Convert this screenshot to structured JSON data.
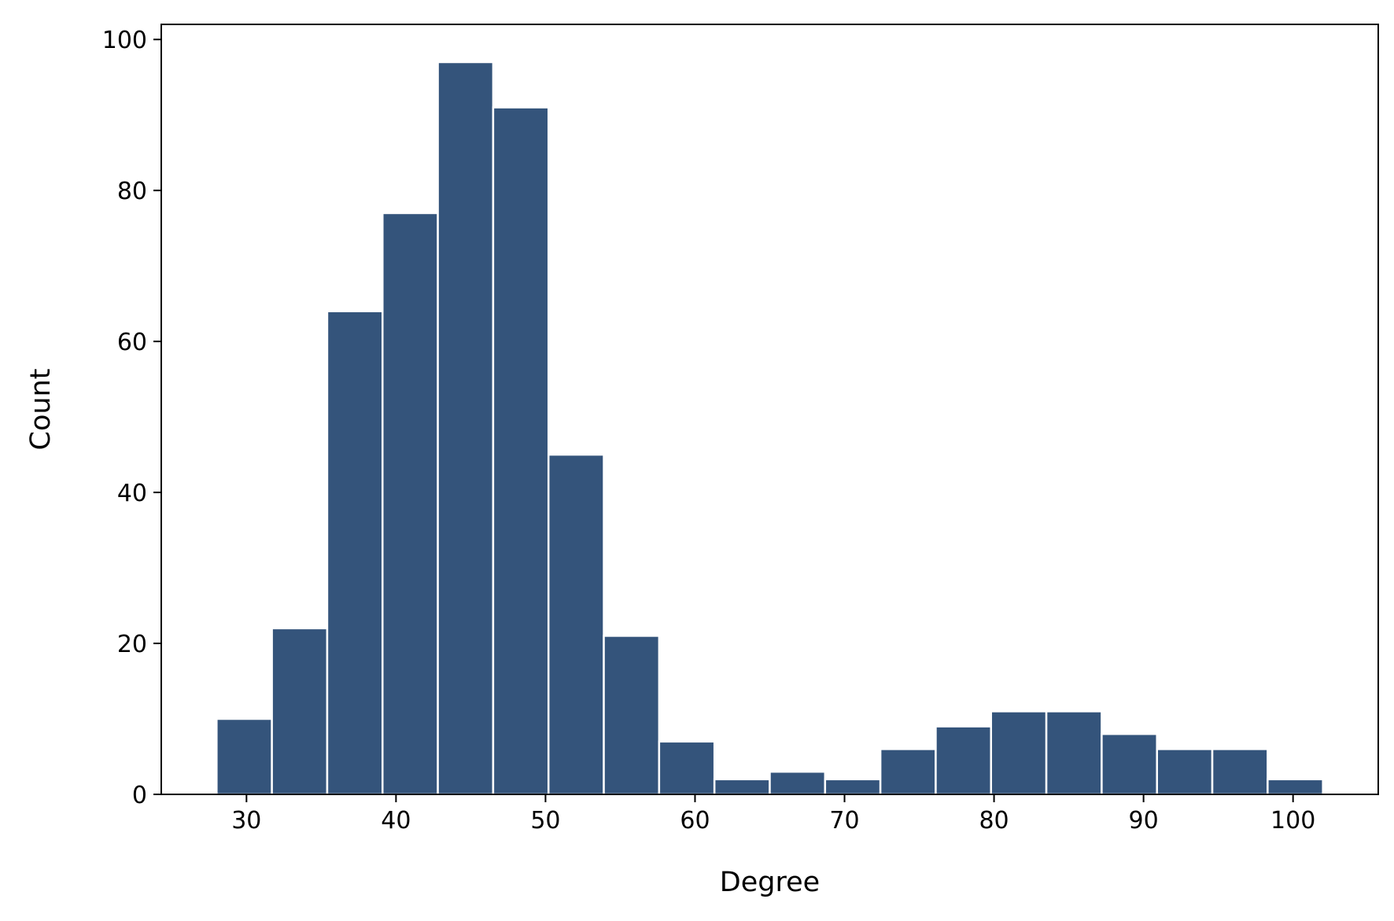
{
  "chart_data": {
    "type": "bar",
    "xlabel": "Degree",
    "ylabel": "Count",
    "bar_color": "#34547b",
    "bar_edge_color": "#ffffff",
    "grid": false,
    "xlim": [
      24.3,
      105.7
    ],
    "ylim": [
      0,
      102
    ],
    "xticks": [
      30,
      40,
      50,
      60,
      70,
      80,
      90,
      100
    ],
    "yticks": [
      0,
      20,
      40,
      60,
      80,
      100
    ],
    "bins": [
      {
        "x0": 28.0,
        "x1": 31.7,
        "value": 10
      },
      {
        "x0": 31.7,
        "x1": 35.4,
        "value": 22
      },
      {
        "x0": 35.4,
        "x1": 39.1,
        "value": 64
      },
      {
        "x0": 39.1,
        "x1": 42.8,
        "value": 77
      },
      {
        "x0": 42.8,
        "x1": 46.5,
        "value": 97
      },
      {
        "x0": 46.5,
        "x1": 50.2,
        "value": 91
      },
      {
        "x0": 50.2,
        "x1": 53.9,
        "value": 45
      },
      {
        "x0": 53.9,
        "x1": 57.6,
        "value": 21
      },
      {
        "x0": 57.6,
        "x1": 61.3,
        "value": 7
      },
      {
        "x0": 61.3,
        "x1": 65.0,
        "value": 2
      },
      {
        "x0": 65.0,
        "x1": 68.7,
        "value": 3
      },
      {
        "x0": 68.7,
        "x1": 72.4,
        "value": 2
      },
      {
        "x0": 72.4,
        "x1": 76.1,
        "value": 6
      },
      {
        "x0": 76.1,
        "x1": 79.8,
        "value": 9
      },
      {
        "x0": 79.8,
        "x1": 83.5,
        "value": 11
      },
      {
        "x0": 83.5,
        "x1": 87.2,
        "value": 11
      },
      {
        "x0": 87.2,
        "x1": 90.9,
        "value": 8
      },
      {
        "x0": 90.9,
        "x1": 94.6,
        "value": 6
      },
      {
        "x0": 94.6,
        "x1": 98.3,
        "value": 6
      },
      {
        "x0": 98.3,
        "x1": 102.0,
        "value": 2
      }
    ]
  }
}
